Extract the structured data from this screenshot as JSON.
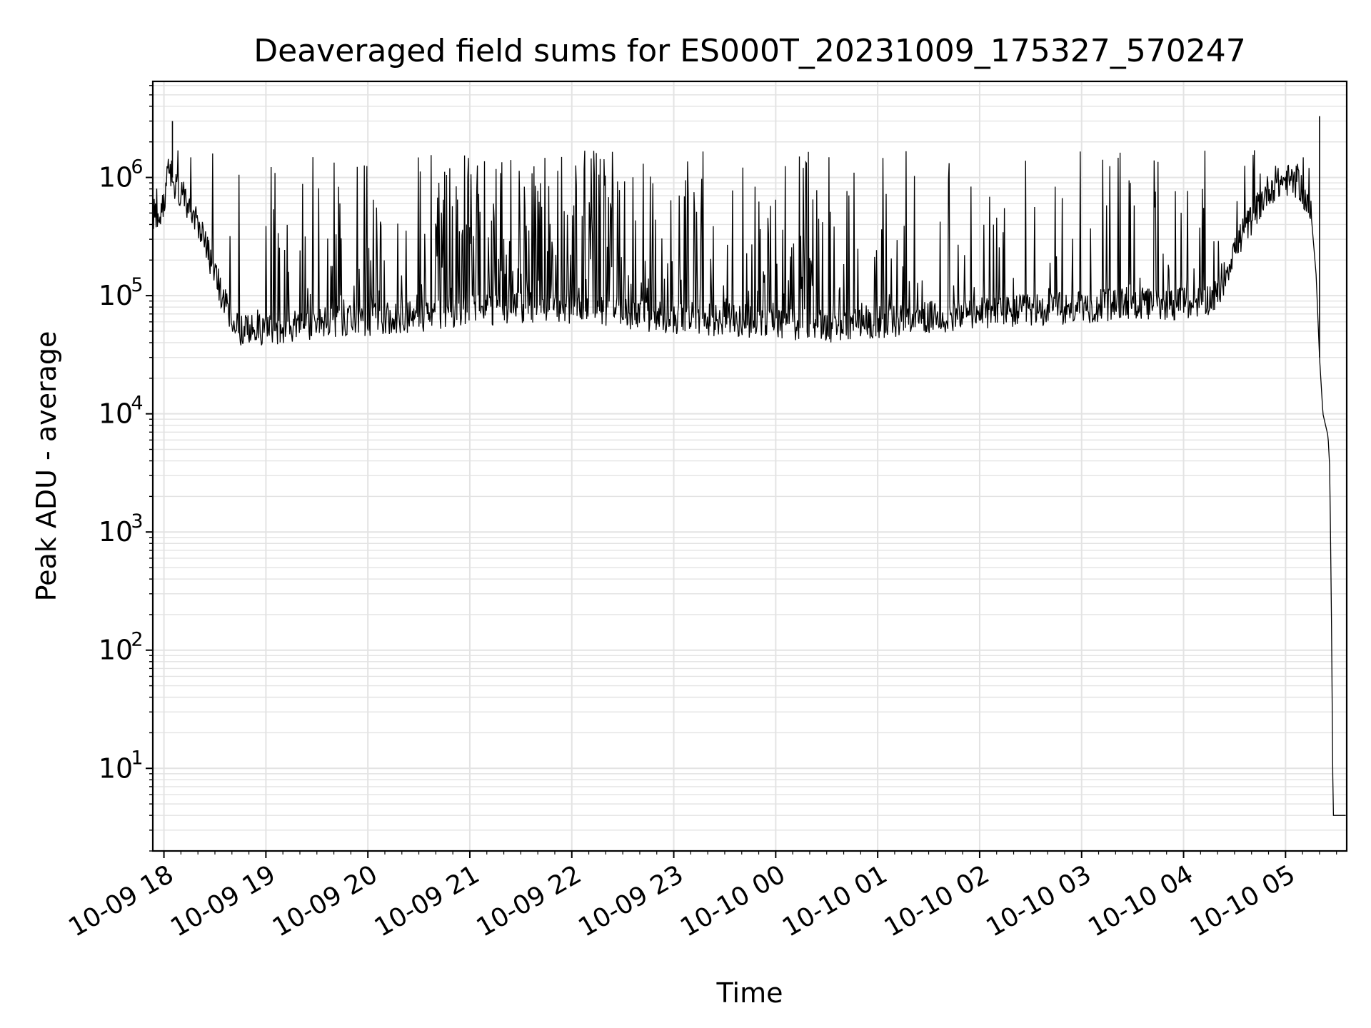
{
  "chart_data": {
    "type": "line",
    "title": "Deaveraged field sums for ES000T_20231009_175327_570247",
    "xlabel": "Time",
    "ylabel": "Peak ADU - average",
    "yscale": "log",
    "ylim": [
      2,
      6500000
    ],
    "xlim": [
      "2023-10-09 17:53:27",
      "2023-10-10 05:36:00"
    ],
    "grid": true,
    "line_color": "#000000",
    "grid_color": "#e3e3e3",
    "x_ticks": [
      {
        "value": "2023-10-09 18:00",
        "label": "10-09 18"
      },
      {
        "value": "2023-10-09 19:00",
        "label": "10-09 19"
      },
      {
        "value": "2023-10-09 20:00",
        "label": "10-09 20"
      },
      {
        "value": "2023-10-09 21:00",
        "label": "10-09 21"
      },
      {
        "value": "2023-10-09 22:00",
        "label": "10-09 22"
      },
      {
        "value": "2023-10-09 23:00",
        "label": "10-09 23"
      },
      {
        "value": "2023-10-10 00:00",
        "label": "10-10 00"
      },
      {
        "value": "2023-10-10 01:00",
        "label": "10-10 01"
      },
      {
        "value": "2023-10-10 02:00",
        "label": "10-10 02"
      },
      {
        "value": "2023-10-10 03:00",
        "label": "10-10 03"
      },
      {
        "value": "2023-10-10 04:00",
        "label": "10-10 04"
      },
      {
        "value": "2023-10-10 05:00",
        "label": "10-10 05"
      }
    ],
    "y_ticks": [
      {
        "value": 10,
        "base": "10",
        "exp": "1"
      },
      {
        "value": 100,
        "base": "10",
        "exp": "2"
      },
      {
        "value": 1000,
        "base": "10",
        "exp": "3"
      },
      {
        "value": 10000,
        "base": "10",
        "exp": "4"
      },
      {
        "value": 100000,
        "base": "10",
        "exp": "5"
      },
      {
        "value": 1000000,
        "base": "10",
        "exp": "6"
      }
    ],
    "series": [
      {
        "x": [
          "2023-10-09 17:53",
          "2023-10-09 17:56",
          "2023-10-09 18:00",
          "2023-10-09 18:02",
          "2023-10-09 18:04",
          "2023-10-09 18:08",
          "2023-10-09 18:15",
          "2023-10-09 18:22",
          "2023-10-09 18:30",
          "2023-10-09 18:38",
          "2023-10-09 18:45",
          "2023-10-09 18:52",
          "2023-10-09 19:00",
          "2023-10-09 19:15",
          "2023-10-09 19:30",
          "2023-10-09 19:45",
          "2023-10-09 20:00",
          "2023-10-09 20:20",
          "2023-10-09 20:40",
          "2023-10-09 21:00",
          "2023-10-09 21:30",
          "2023-10-09 22:00",
          "2023-10-09 22:30",
          "2023-10-09 23:00",
          "2023-10-09 23:30",
          "2023-10-10 00:00",
          "2023-10-10 00:30",
          "2023-10-10 01:00",
          "2023-10-10 01:30",
          "2023-10-10 02:00",
          "2023-10-10 02:30",
          "2023-10-10 03:00",
          "2023-10-10 03:30",
          "2023-10-10 04:00",
          "2023-10-10 04:10",
          "2023-10-10 04:20",
          "2023-10-10 04:30",
          "2023-10-10 04:40",
          "2023-10-10 04:50",
          "2023-10-10 05:00",
          "2023-10-10 05:08",
          "2023-10-10 05:15",
          "2023-10-10 05:18",
          "2023-10-10 05:20",
          "2023-10-10 05:22",
          "2023-10-10 05:24",
          "2023-10-10 05:25",
          "2023-10-10 05:26",
          "2023-10-10 05:27",
          "2023-10-10 05:28",
          "2023-10-10 05:30",
          "2023-10-10 05:33",
          "2023-10-10 05:36"
        ],
        "y": [
          500000,
          480000,
          540000,
          1300000,
          1100000,
          750000,
          600000,
          350000,
          150000,
          70000,
          52000,
          50000,
          52000,
          55000,
          58000,
          60000,
          62000,
          65000,
          70000,
          75000,
          80000,
          75000,
          70000,
          65000,
          62000,
          58000,
          55000,
          60000,
          65000,
          70000,
          75000,
          80000,
          85000,
          85000,
          90000,
          100000,
          250000,
          450000,
          800000,
          950000,
          900000,
          500000,
          150000,
          30000,
          10000,
          7500,
          6500,
          3500,
          200,
          4,
          4,
          4,
          4
        ]
      }
    ],
    "spikes": [
      {
        "x": "2023-10-09 18:05",
        "y": 3000000
      },
      {
        "x": "2023-10-10 05:20",
        "y": 3300000
      }
    ]
  }
}
